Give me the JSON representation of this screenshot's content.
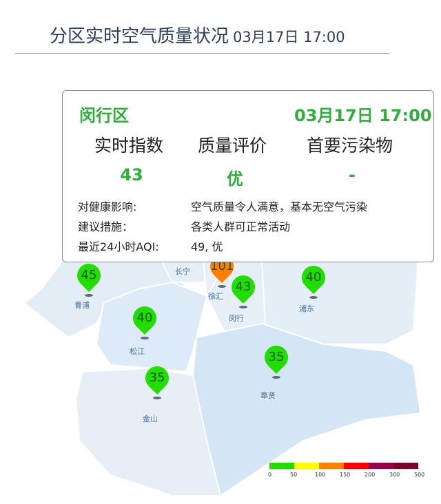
{
  "header": {
    "title": "分区实时空气质量状况",
    "time": "03月17日 17:00"
  },
  "popup": {
    "district": "闵行区",
    "time": "03月17日 17:00",
    "columns": [
      "实时指数",
      "质量评价",
      "首要污染物"
    ],
    "values": [
      "43",
      "优",
      "-"
    ],
    "rows": [
      {
        "label": "对健康影响:",
        "value": "空气质量令人满意，基本无空气污染"
      },
      {
        "label": "建议措施：",
        "value": "各类人群可正常活动"
      },
      {
        "label": "最近24小时AQI:",
        "value": "49, 优"
      }
    ]
  },
  "districts": [
    {
      "name": "青浦",
      "aqi": "45",
      "color": "#22dd00"
    },
    {
      "name": "长宁",
      "aqi": "",
      "color": ""
    },
    {
      "name": "徐汇",
      "aqi": "101",
      "color": "#ff7e00"
    },
    {
      "name": "闵行",
      "aqi": "43",
      "color": "#22dd00"
    },
    {
      "name": "浦东",
      "aqi": "40",
      "color": "#22dd00"
    },
    {
      "name": "松江",
      "aqi": "40",
      "color": "#22dd00"
    },
    {
      "name": "奉贤",
      "aqi": "35",
      "color": "#22dd00"
    },
    {
      "name": "金山",
      "aqi": "35",
      "color": "#22dd00"
    }
  ],
  "legend": {
    "colors": [
      "#22dd00",
      "#ffff00",
      "#ff7e00",
      "#ff0000",
      "#99004c",
      "#7e0023"
    ],
    "ticks": [
      "0",
      "50",
      "100",
      "150",
      "200",
      "300",
      "500"
    ]
  }
}
